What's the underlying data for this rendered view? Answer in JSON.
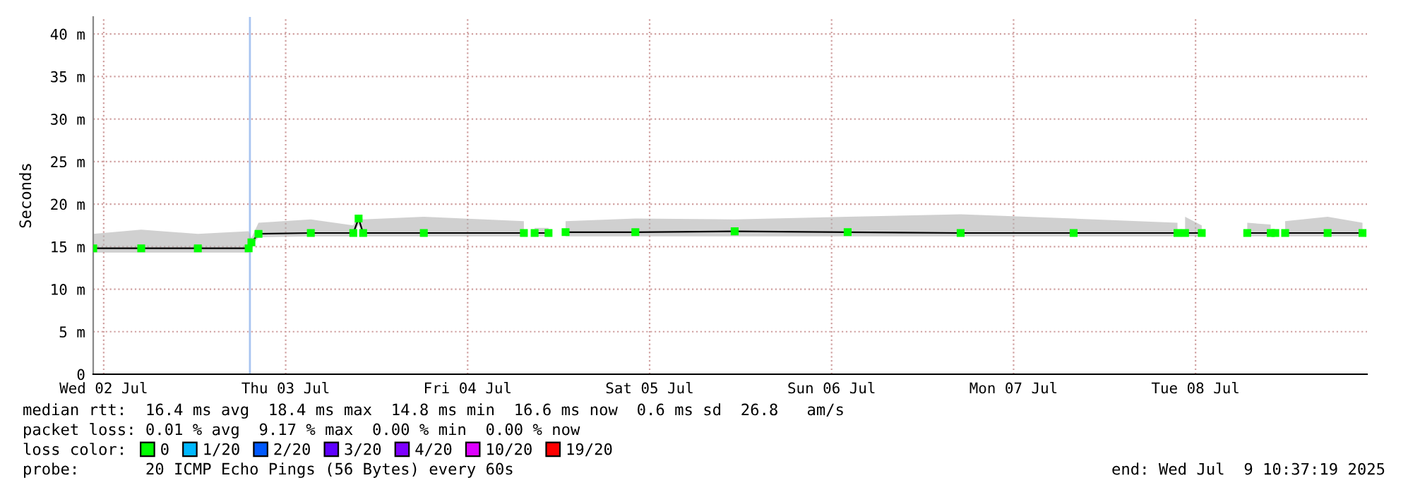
{
  "chart_data": {
    "type": "line",
    "ylabel": "Seconds",
    "x": [
      "2025-07-02T10:37",
      "2025-07-02T16:57",
      "2025-07-03T00:25",
      "2025-07-03T07:07",
      "2025-07-03T07:29",
      "2025-07-03T08:25",
      "2025-07-03T15:19",
      "2025-07-03T20:55",
      "2025-07-03T21:37",
      "2025-07-03T22:13",
      "2025-07-04T06:13",
      "2025-07-04T19:25",
      "2025-07-04T20:00",
      "2025-07-04T20:50",
      "2025-07-04T22:40",
      "2025-07-04T23:30",
      "2025-07-05T00:55",
      "2025-07-05T10:07",
      "2025-07-05T23:13",
      "2025-07-06T14:07",
      "2025-07-07T05:01",
      "2025-07-07T19:55",
      "2025-07-08T09:37",
      "2025-07-08T10:05",
      "2025-07-08T10:37",
      "2025-07-08T12:49",
      "2025-07-08T15:00",
      "2025-07-08T18:49",
      "2025-07-08T21:55",
      "2025-07-08T22:15",
      "2025-07-08T22:31",
      "2025-07-08T23:10",
      "2025-07-08T23:49",
      "2025-07-09T05:25",
      "2025-07-09T10:01"
    ],
    "series": [
      {
        "name": "0",
        "color": "#00ff00",
        "values": [
          14.8,
          14.8,
          14.8,
          14.8,
          15.5,
          16.5,
          16.6,
          16.6,
          18.3,
          16.6,
          16.6,
          16.6,
          null,
          16.6,
          16.6,
          null,
          16.7,
          16.7,
          16.8,
          16.7,
          16.6,
          16.6,
          16.6,
          null,
          16.6,
          16.6,
          null,
          16.6,
          16.6,
          null,
          16.6,
          null,
          16.6,
          16.6,
          16.6
        ],
        "lower": [
          14.3,
          14.3,
          14.3,
          14.3,
          15,
          16.1,
          16.2,
          16.2,
          17.6,
          16.2,
          16.2,
          16.2,
          null,
          16.2,
          16.2,
          null,
          16.2,
          16.2,
          16.2,
          16.2,
          16.2,
          16.2,
          16.2,
          null,
          16.2,
          16.2,
          null,
          16.2,
          16.2,
          null,
          16.2,
          null,
          16.2,
          16.2,
          16.2
        ],
        "upper": [
          16.5,
          17,
          16.5,
          16.8,
          16,
          17.8,
          18.2,
          17.5,
          18.8,
          18.2,
          18.5,
          18,
          null,
          17.2,
          17.2,
          null,
          18,
          18.3,
          18.2,
          18.5,
          18.8,
          18.3,
          17.8,
          null,
          18.5,
          17.5,
          null,
          17.8,
          17.6,
          null,
          17.2,
          null,
          18,
          18.5,
          17.8
        ]
      },
      {
        "name": "1/20",
        "color": "#00b8ff",
        "values": [
          null,
          null,
          null,
          null,
          null,
          null,
          null,
          null,
          null,
          null,
          null,
          null,
          null,
          null,
          null,
          null,
          null,
          null,
          null,
          null,
          null,
          null,
          null,
          null,
          null,
          null,
          null,
          null,
          null,
          null,
          null,
          null,
          null,
          null,
          null
        ]
      },
      {
        "name": "2/20",
        "color": "#0059ff",
        "values": [
          null,
          null,
          null,
          null,
          null,
          null,
          null,
          null,
          null,
          null,
          null,
          null,
          null,
          null,
          null,
          null,
          null,
          null,
          null,
          null,
          null,
          null,
          null,
          null,
          null,
          null,
          null,
          null,
          null,
          null,
          null,
          null,
          null,
          null,
          null
        ]
      },
      {
        "name": "3/20",
        "color": "#5e00ff",
        "values": [
          null,
          null,
          null,
          null,
          null,
          null,
          null,
          null,
          null,
          null,
          null,
          null,
          null,
          null,
          null,
          null,
          null,
          null,
          null,
          null,
          null,
          null,
          null,
          null,
          null,
          null,
          null,
          null,
          null,
          null,
          null,
          null,
          null,
          null,
          null
        ]
      },
      {
        "name": "4/20",
        "color": "#7e00ff",
        "values": [
          null,
          null,
          null,
          null,
          null,
          null,
          null,
          null,
          null,
          null,
          null,
          null,
          null,
          null,
          null,
          null,
          null,
          null,
          null,
          null,
          null,
          null,
          null,
          null,
          null,
          null,
          null,
          null,
          null,
          null,
          null,
          null,
          null,
          null,
          null
        ]
      },
      {
        "name": "10/20",
        "color": "#dd00ff",
        "values": [
          null,
          null,
          null,
          null,
          null,
          null,
          null,
          null,
          null,
          null,
          null,
          null,
          null,
          null,
          null,
          null,
          null,
          null,
          null,
          null,
          null,
          null,
          null,
          null,
          null,
          null,
          null,
          null,
          null,
          null,
          null,
          null,
          null,
          null,
          null
        ]
      },
      {
        "name": "19/20",
        "color": "#ff0000",
        "values": [
          null,
          null,
          null,
          null,
          null,
          null,
          null,
          null,
          null,
          null,
          null,
          null,
          null,
          null,
          null,
          null,
          null,
          null,
          null,
          null,
          null,
          null,
          null,
          null,
          null,
          null,
          null,
          null,
          null,
          null,
          null,
          null,
          null,
          null,
          null
        ]
      }
    ],
    "legend_title": "loss color:",
    "legend": "bottom",
    "marker": "square",
    "line_style": "solid",
    "grid": true,
    "xlim": [
      "2025-07-02T10:37",
      "2025-07-09T10:37"
    ],
    "xticks": [
      {
        "value": "2025-07-02T12:00",
        "label": "Wed 02 Jul"
      },
      {
        "value": "2025-07-03T12:00",
        "label": "Thu 03 Jul"
      },
      {
        "value": "2025-07-04T12:00",
        "label": "Fri 04 Jul"
      },
      {
        "value": "2025-07-05T12:00",
        "label": "Sat 05 Jul"
      },
      {
        "value": "2025-07-06T12:00",
        "label": "Sun 06 Jul"
      },
      {
        "value": "2025-07-07T12:00",
        "label": "Mon 07 Jul"
      },
      {
        "value": "2025-07-08T12:00",
        "label": "Tue 08 Jul"
      }
    ],
    "ylim": [
      0,
      42
    ],
    "yticks": [
      0,
      {
        "value": 5,
        "label": "5 m"
      },
      {
        "value": 10,
        "label": "10 m"
      },
      {
        "value": 15,
        "label": "15 m"
      },
      {
        "value": 20,
        "label": "20 m"
      },
      {
        "value": 25,
        "label": "25 m"
      },
      {
        "value": 30,
        "label": "30 m"
      },
      {
        "value": 35,
        "label": "35 m"
      },
      {
        "value": 40,
        "label": "40 m"
      }
    ],
    "ref_lines": [
      {
        "axis": "x",
        "value": "2025-07-03T07:17",
        "label": null,
        "color": "#a8c4f0"
      }
    ],
    "annotations": [
      "median rtt:  16.4 ms avg  18.4 ms max  14.8 ms min  16.6 ms now  0.6 ms sd  26.8   am/s",
      "packet loss: 0.01 % avg  9.17 % max  0.00 % min  0.00 % now",
      "probe:       20 ICMP Echo Pings (56 Bytes) every 60s",
      "end: Wed Jul  9 10:37:19 2025"
    ]
  }
}
